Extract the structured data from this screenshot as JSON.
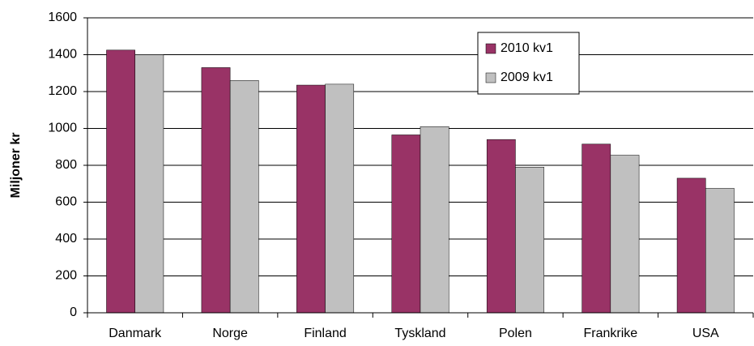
{
  "chart_data": {
    "type": "bar",
    "y_label": "Miljoner kr",
    "categories": [
      "Danmark",
      "Norge",
      "Finland",
      "Tyskland",
      "Polen",
      "Frankrike",
      "USA"
    ],
    "series": [
      {
        "name": "2010 kv1",
        "color": "#993366",
        "values": [
          1425,
          1330,
          1235,
          965,
          940,
          915,
          730
        ]
      },
      {
        "name": "2009 kv1",
        "color": "#c0c0c0",
        "values": [
          1400,
          1260,
          1240,
          1010,
          790,
          855,
          675
        ]
      }
    ],
    "ylim": [
      0,
      1600
    ],
    "yticks": [
      0,
      200,
      400,
      600,
      800,
      1000,
      1200,
      1400,
      1600
    ],
    "grid": true,
    "legend": "upper right"
  }
}
